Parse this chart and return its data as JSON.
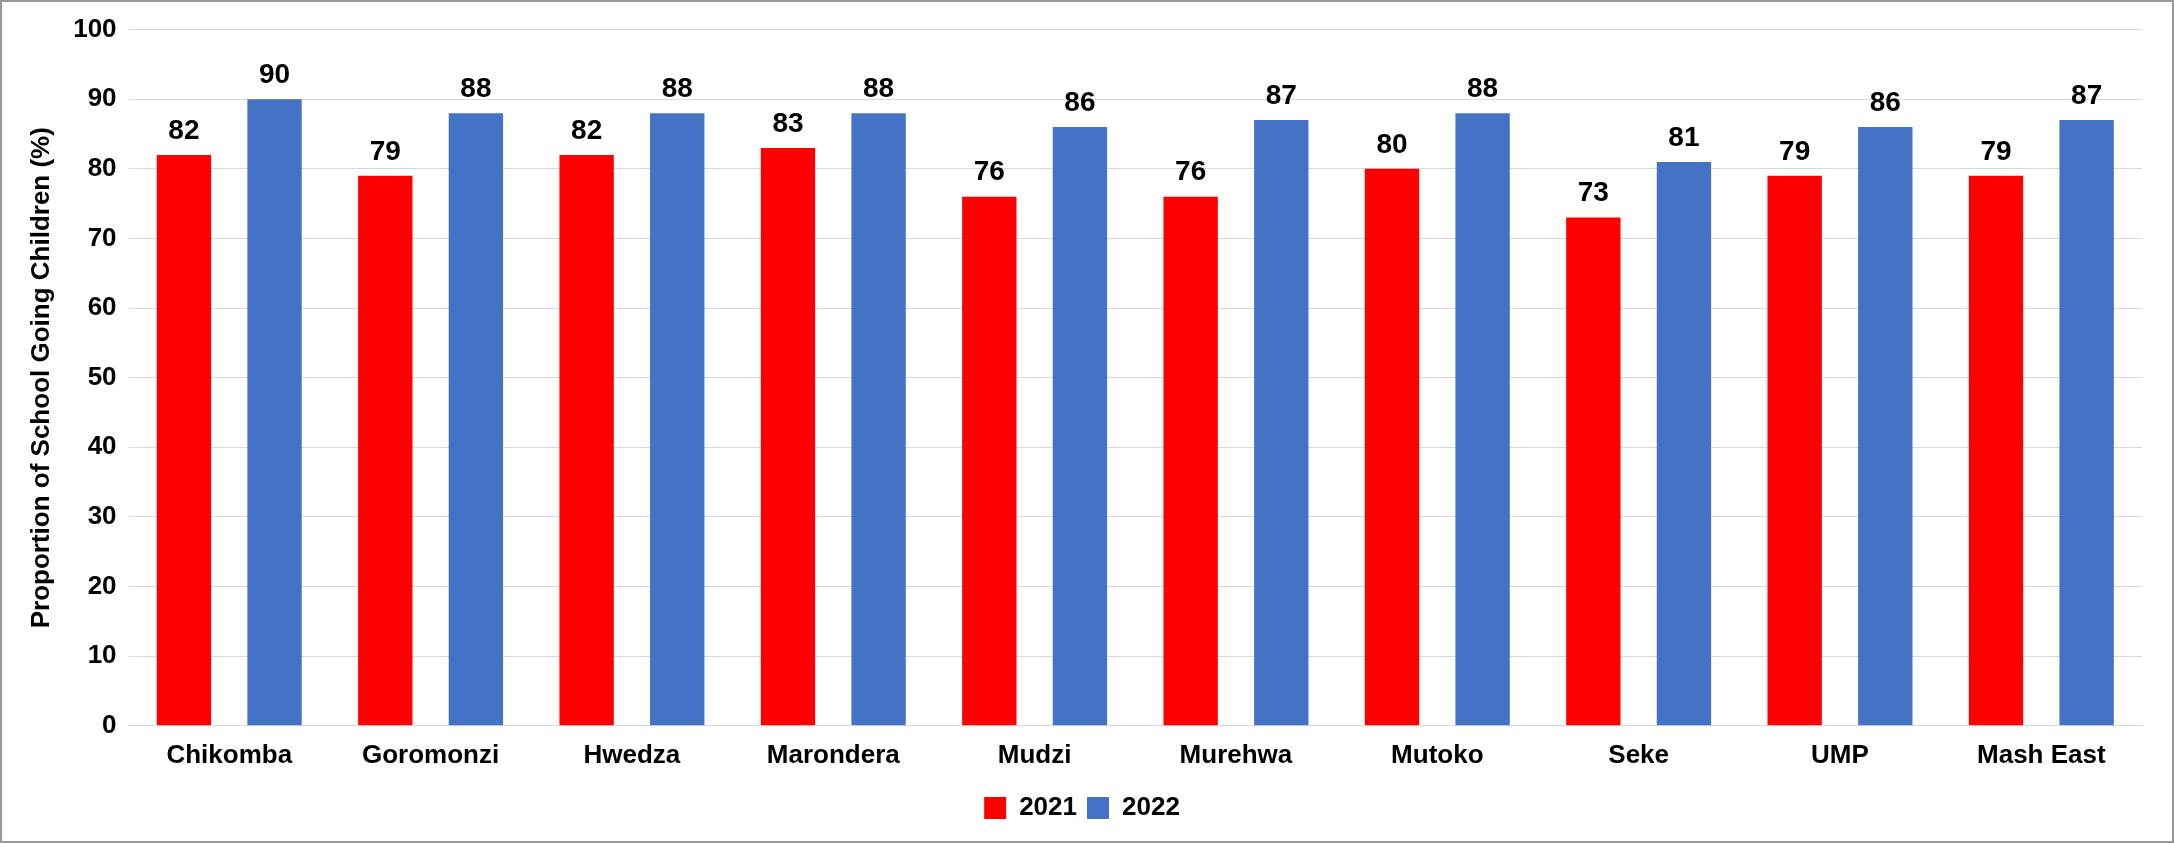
{
  "chart_data": {
    "type": "bar",
    "ylabel": "Proportion of School Going Children (%)",
    "categories": [
      "Chikomba",
      "Goromonzi",
      "Hwedza",
      "Marondera",
      "Mudzi",
      "Murehwa",
      "Mutoko",
      "Seke",
      "UMP",
      "Mash East"
    ],
    "series": [
      {
        "name": "2021",
        "color": "#ff0000",
        "values": [
          82,
          79,
          82,
          83,
          76,
          76,
          80,
          73,
          79,
          79
        ]
      },
      {
        "name": "2022",
        "color": "#4472c4",
        "values": [
          90,
          88,
          88,
          88,
          86,
          87,
          88,
          81,
          86,
          87
        ]
      }
    ],
    "ylim": [
      0,
      100
    ],
    "yticks": [
      0,
      10,
      20,
      30,
      40,
      50,
      60,
      70,
      80,
      90,
      100
    ],
    "grid": "y",
    "legend": "bottom",
    "data_labels": true
  }
}
